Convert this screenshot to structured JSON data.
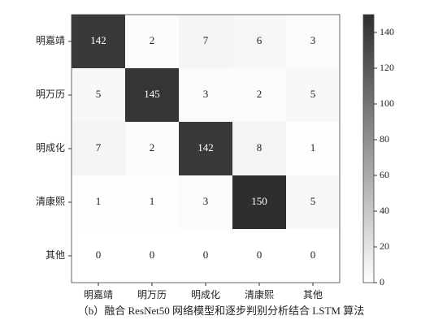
{
  "chart_data": {
    "type": "heatmap",
    "x_categories": [
      "明嘉靖",
      "明万历",
      "明成化",
      "清康熙",
      "其他"
    ],
    "y_categories": [
      "明嘉靖",
      "明万历",
      "明成化",
      "清康熙",
      "其他"
    ],
    "values": [
      [
        142,
        2,
        7,
        6,
        3
      ],
      [
        5,
        145,
        3,
        2,
        5
      ],
      [
        7,
        2,
        142,
        8,
        1
      ],
      [
        1,
        1,
        3,
        150,
        5
      ],
      [
        0,
        0,
        0,
        0,
        0
      ]
    ],
    "colors": [
      "#ffffff",
      "#2e2e2e"
    ],
    "clim": [
      0,
      150
    ],
    "cticks": [
      0,
      20,
      40,
      60,
      80,
      100,
      120,
      140
    ],
    "caption": "（b）融合 ResNet50 网络模型和逐步判别分析结合 LSTM 算法"
  }
}
